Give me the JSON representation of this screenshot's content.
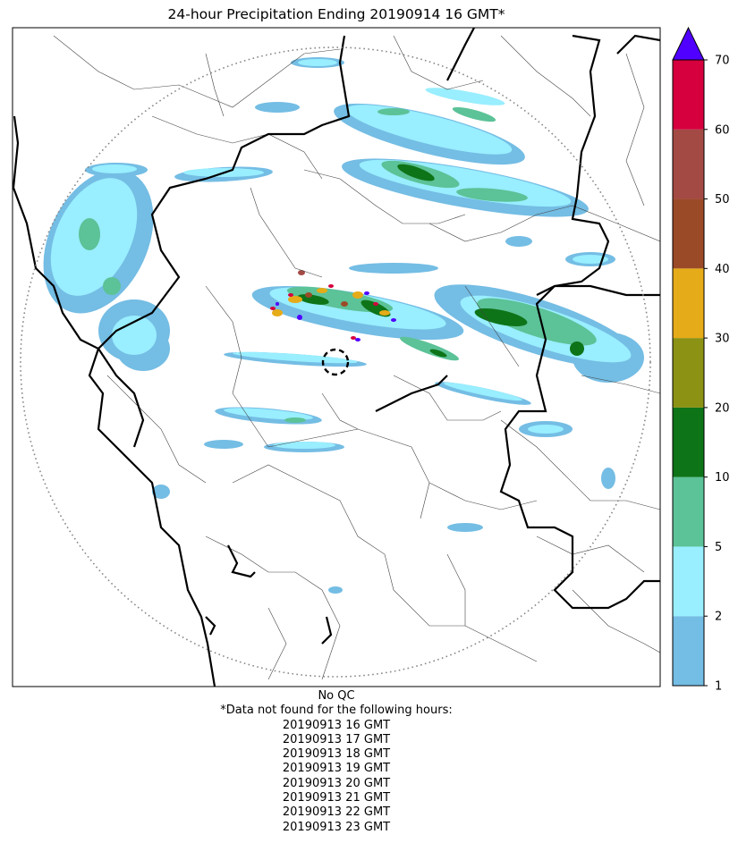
{
  "title": "24-hour Precipitation Ending 20190914 16 GMT*",
  "footer": {
    "qc_note": "No QC",
    "missing_note": "*Data not found for the following hours:",
    "missing_hours": [
      "20190913 16 GMT",
      "20190913 17 GMT",
      "20190913 18 GMT",
      "20190913 19 GMT",
      "20190913 20 GMT",
      "20190913 21 GMT",
      "20190913 22 GMT",
      "20190913 23 GMT"
    ]
  },
  "colorbar": {
    "bounds": [
      "1",
      "2",
      "5",
      "10",
      "20",
      "30",
      "40",
      "50",
      "60",
      "70"
    ],
    "colors": [
      "#74bde4",
      "#99eeff",
      "#5cc297",
      "#0e7418",
      "#8b9214",
      "#e6ab18",
      "#9b4a28",
      "#a44a44",
      "#d5003d"
    ],
    "extend_color": "#5000ff"
  },
  "colors": {
    "state_border": "#000000",
    "district_border": "#444444",
    "range_ring": "#888888"
  },
  "icons": {
    "radar_site": "dashed-circle-marker"
  }
}
